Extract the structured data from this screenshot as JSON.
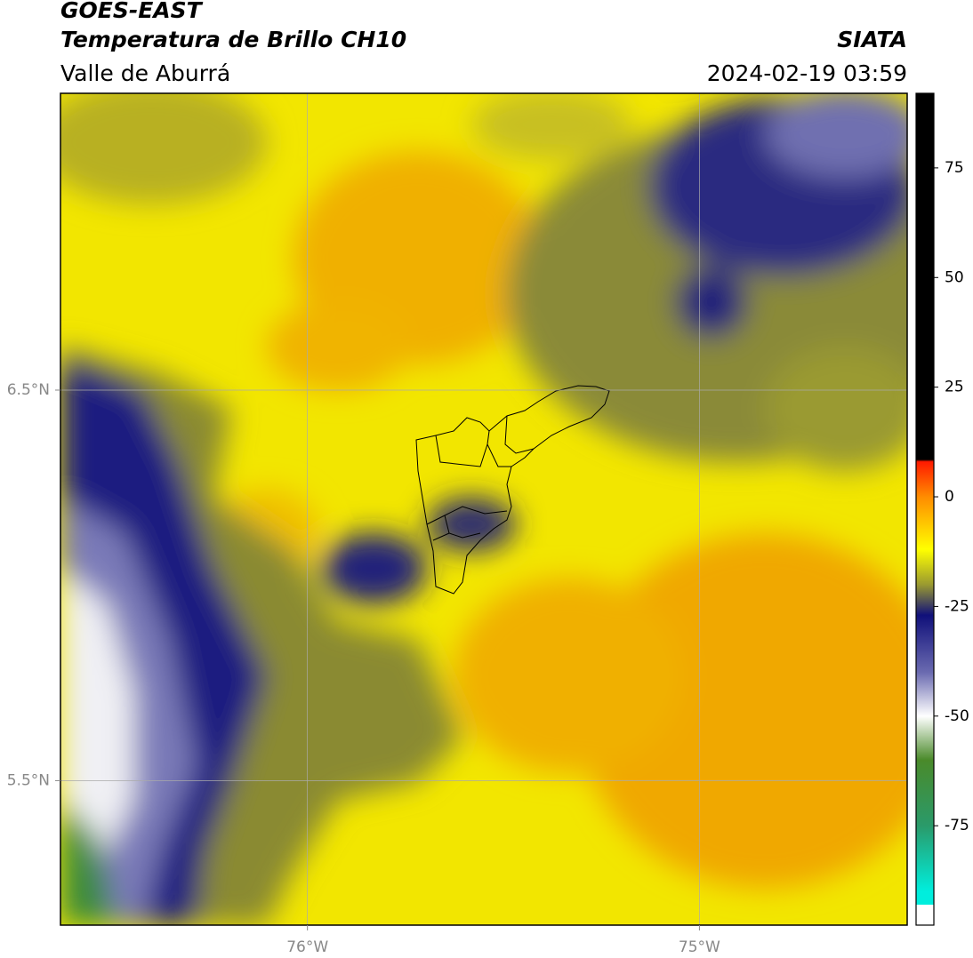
{
  "header": {
    "title": "GOES-EAST",
    "subtitle": "Temperatura de Brillo CH10",
    "region": "Valle de Aburrá",
    "source": "SIATA",
    "datetime": "2024-02-19 03:59"
  },
  "map": {
    "lon_range": [
      -76.63,
      -74.47
    ],
    "lat_range": [
      5.13,
      7.26
    ],
    "lon_ticks": [
      {
        "value": -76,
        "label": "76°W"
      },
      {
        "value": -75,
        "label": "75°W"
      }
    ],
    "lat_ticks": [
      {
        "value": 6.5,
        "label": "6.5°N"
      },
      {
        "value": 5.5,
        "label": "5.5°N"
      }
    ],
    "grid": true,
    "grid_color": "#aaaaaa"
  },
  "colorbar": {
    "range": [
      -93,
      92
    ],
    "ticks": [
      75,
      50,
      25,
      0,
      -25,
      -50,
      -75
    ],
    "under_color": "#ffffff",
    "stops": [
      {
        "value": 92,
        "color": "#000000"
      },
      {
        "value": 8.5,
        "color": "#000000"
      },
      {
        "value": 8,
        "color": "#ff1a00"
      },
      {
        "value": 0,
        "color": "#ff8c00"
      },
      {
        "value": -12,
        "color": "#ffff00"
      },
      {
        "value": -20,
        "color": "#9a9a30"
      },
      {
        "value": -27,
        "color": "#10107a"
      },
      {
        "value": -40,
        "color": "#6a6ab0"
      },
      {
        "value": -50,
        "color": "#ffffff"
      },
      {
        "value": -60,
        "color": "#4a8a2a"
      },
      {
        "value": -75,
        "color": "#2a9a6a"
      },
      {
        "value": -90,
        "color": "#00eedd"
      }
    ]
  }
}
